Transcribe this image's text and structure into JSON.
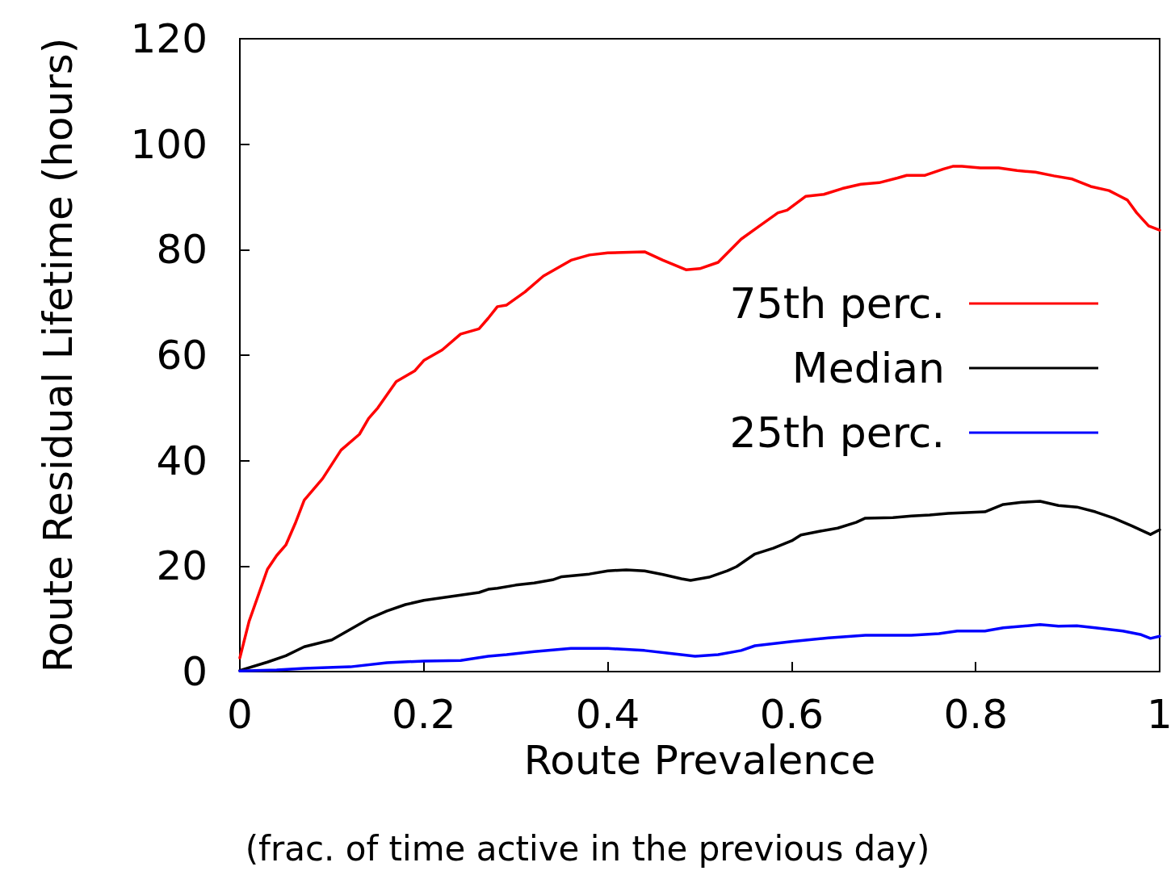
{
  "chart_data": {
    "type": "line",
    "xlabel": "Route Prevalence",
    "ylabel": "Route Residual Lifetime (hours)",
    "annotations": [
      "(frac. of time active in the previous day)"
    ],
    "xlim": [
      0,
      1
    ],
    "xticks": [
      0,
      0.2,
      0.4,
      0.6,
      0.8,
      1
    ],
    "ylim": [
      0,
      120
    ],
    "yticks": [
      0,
      20,
      40,
      60,
      80,
      100,
      120
    ],
    "grid": false,
    "legend": "right",
    "marker": "none",
    "line_style": "solid",
    "series": [
      {
        "name": "75th perc.",
        "color": "#ff0000",
        "x": [
          0,
          0.01,
          0.03,
          0.04,
          0.05,
          0.06,
          0.07,
          0.09,
          0.11,
          0.13,
          0.14,
          0.15,
          0.17,
          0.19,
          0.2,
          0.22,
          0.24,
          0.26,
          0.27,
          0.28,
          0.29,
          0.31,
          0.33,
          0.34,
          0.36,
          0.38,
          0.4,
          0.44,
          0.46,
          0.485,
          0.5,
          0.52,
          0.545,
          0.565,
          0.585,
          0.595,
          0.615,
          0.635,
          0.655,
          0.675,
          0.695,
          0.715,
          0.725,
          0.745,
          0.765,
          0.775,
          0.785,
          0.805,
          0.825,
          0.845,
          0.865,
          0.885,
          0.905,
          0.925,
          0.945,
          0.955,
          0.965,
          0.975,
          0.988,
          1
        ],
        "values": [
          2.6,
          9.5,
          19.4,
          22,
          24,
          28,
          32.5,
          36.6,
          42,
          45,
          48,
          50,
          55,
          57,
          59,
          61,
          64,
          65,
          67,
          69.2,
          69.5,
          72,
          75,
          76,
          78,
          79,
          79.4,
          79.6,
          78,
          76.2,
          76.4,
          77.6,
          82,
          84.5,
          87,
          87.5,
          90.1,
          90.5,
          91.6,
          92.4,
          92.7,
          93.6,
          94.1,
          94.1,
          95.3,
          95.8,
          95.8,
          95.5,
          95.5,
          95,
          94.7,
          94,
          93.4,
          92,
          91.2,
          90.3,
          89.4,
          87,
          84.5,
          83.7
        ]
      },
      {
        "name": "Median",
        "color": "#000000",
        "x": [
          0,
          0.03,
          0.05,
          0.07,
          0.1,
          0.12,
          0.14,
          0.16,
          0.18,
          0.2,
          0.22,
          0.24,
          0.26,
          0.27,
          0.28,
          0.3,
          0.32,
          0.34,
          0.35,
          0.38,
          0.4,
          0.42,
          0.44,
          0.46,
          0.48,
          0.49,
          0.51,
          0.53,
          0.54,
          0.56,
          0.58,
          0.6,
          0.61,
          0.63,
          0.65,
          0.67,
          0.68,
          0.71,
          0.73,
          0.75,
          0.77,
          0.81,
          0.83,
          0.85,
          0.87,
          0.89,
          0.91,
          0.93,
          0.95,
          0.97,
          0.99,
          1
        ],
        "values": [
          0.2,
          1.8,
          3,
          4.7,
          6,
          8,
          10,
          11.5,
          12.7,
          13.5,
          14,
          14.5,
          15,
          15.6,
          15.8,
          16.4,
          16.8,
          17.4,
          18,
          18.5,
          19.1,
          19.3,
          19.1,
          18.4,
          17.6,
          17.3,
          17.9,
          19.1,
          19.9,
          22.3,
          23.4,
          24.8,
          25.9,
          26.6,
          27.2,
          28.3,
          29.1,
          29.2,
          29.5,
          29.7,
          30,
          30.3,
          31.7,
          32.1,
          32.3,
          31.5,
          31.2,
          30.3,
          29.1,
          27.6,
          26,
          26.9
        ]
      },
      {
        "name": "25th perc.",
        "color": "#0000ff",
        "x": [
          0,
          0.04,
          0.07,
          0.12,
          0.16,
          0.2,
          0.24,
          0.27,
          0.29,
          0.32,
          0.36,
          0.4,
          0.44,
          0.47,
          0.495,
          0.52,
          0.545,
          0.56,
          0.6,
          0.64,
          0.68,
          0.73,
          0.76,
          0.78,
          0.81,
          0.83,
          0.87,
          0.89,
          0.91,
          0.93,
          0.96,
          0.98,
          0.99,
          1
        ],
        "values": [
          0.1,
          0.3,
          0.6,
          0.9,
          1.7,
          2,
          2.1,
          2.9,
          3.2,
          3.8,
          4.4,
          4.4,
          4,
          3.4,
          2.9,
          3.2,
          4,
          4.9,
          5.7,
          6.4,
          6.9,
          6.9,
          7.2,
          7.7,
          7.7,
          8.3,
          8.9,
          8.6,
          8.7,
          8.3,
          7.7,
          7,
          6.3,
          6.7
        ]
      }
    ]
  }
}
